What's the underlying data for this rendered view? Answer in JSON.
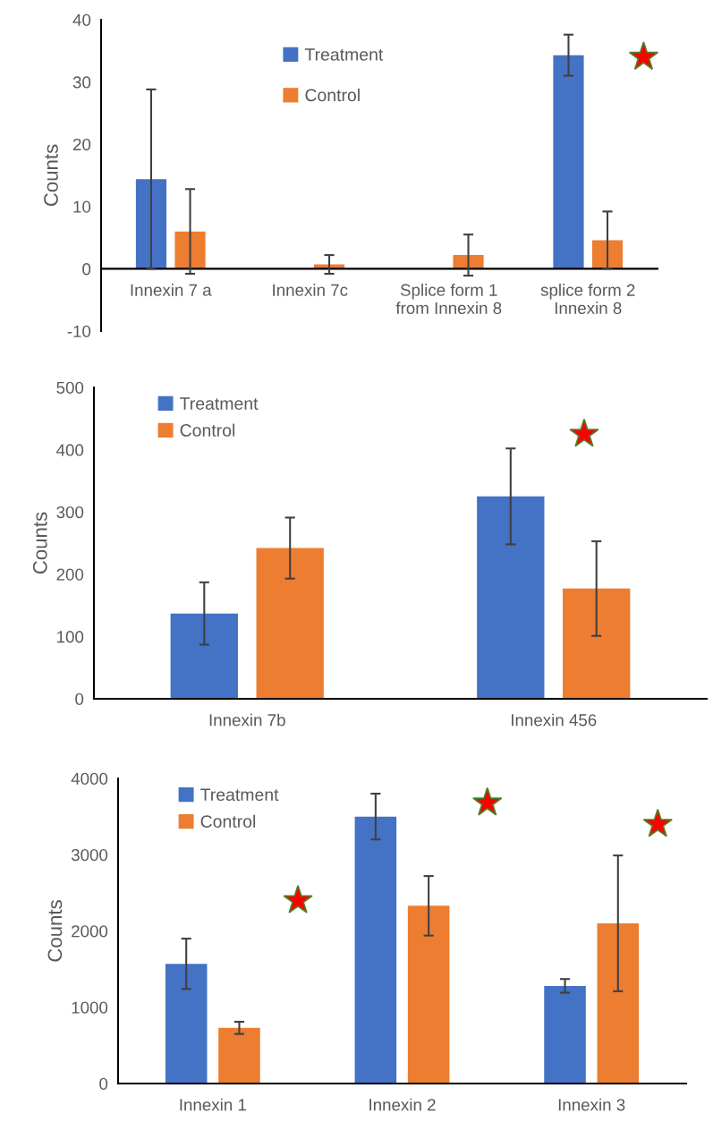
{
  "chart_data": [
    {
      "type": "bar",
      "ylabel": "Counts",
      "categories": [
        "Innexin 7 a",
        "Innexin 7c",
        "Splice form 1\nfrom Innexin 8",
        "splice form 2\nInnexin 8"
      ],
      "ylim": [
        -10,
        40
      ],
      "yticks": [
        -10,
        0,
        10,
        20,
        30,
        40
      ],
      "grid": false,
      "legend": "top",
      "series": [
        {
          "name": "Treatment",
          "color": "#4472c4",
          "values": [
            14.4,
            0,
            0,
            34.3
          ],
          "errors": [
            14.4,
            null,
            null,
            3.3
          ]
        },
        {
          "name": "Control",
          "color": "#ed7d31",
          "values": [
            6.0,
            0.7,
            2.2,
            4.6
          ],
          "errors": [
            6.8,
            1.5,
            3.3,
            4.6
          ]
        }
      ]
    },
    {
      "type": "bar",
      "ylabel": "Counts",
      "categories": [
        "Innexin 7b",
        "Innexin 456"
      ],
      "ylim": [
        0,
        500
      ],
      "yticks": [
        0,
        100,
        200,
        300,
        400,
        500
      ],
      "grid": false,
      "legend": "top left",
      "series": [
        {
          "name": "Treatment",
          "color": "#4472c4",
          "values": [
            137,
            325
          ],
          "errors": [
            50,
            77
          ]
        },
        {
          "name": "Control",
          "color": "#ed7d31",
          "values": [
            242,
            177
          ],
          "errors": [
            49,
            76
          ]
        }
      ]
    },
    {
      "type": "bar",
      "ylabel": "Counts",
      "categories": [
        "Innexin 1",
        "Innexin 2",
        "Innexin 3"
      ],
      "ylim": [
        0,
        4000
      ],
      "yticks": [
        0,
        1000,
        2000,
        3000,
        4000
      ],
      "grid": false,
      "legend": "top left",
      "series": [
        {
          "name": "Treatment",
          "color": "#4472c4",
          "values": [
            1570,
            3500,
            1280
          ],
          "errors": [
            330,
            300,
            90
          ]
        },
        {
          "name": "Control",
          "color": "#ed7d31",
          "values": [
            730,
            2330,
            2100
          ],
          "errors": [
            80,
            390,
            890
          ]
        }
      ]
    }
  ]
}
